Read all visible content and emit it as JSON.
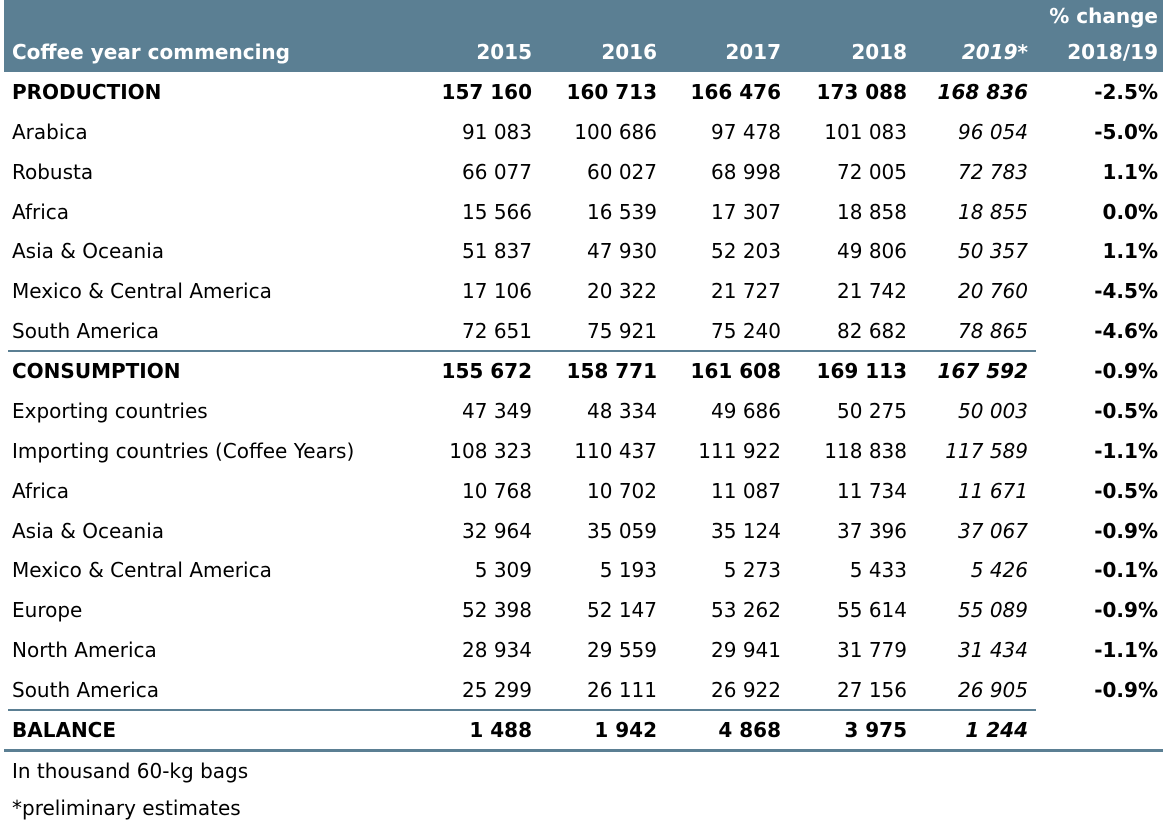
{
  "header": {
    "label": "Coffee year commencing",
    "columns": [
      "2015",
      "2016",
      "2017",
      "2018",
      "2019*"
    ],
    "change": [
      "% change",
      "2018/19"
    ]
  },
  "rows": [
    {
      "label": "PRODUCTION",
      "values": [
        "157 160",
        "160 713",
        "166 476",
        "173 088",
        "168 836"
      ],
      "change": "-2.5%",
      "bold": true
    },
    {
      "label": "Arabica",
      "values": [
        "91 083",
        "100 686",
        "97 478",
        "101 083",
        "96 054"
      ],
      "change": "-5.0%"
    },
    {
      "label": "Robusta",
      "values": [
        "66 077",
        "60 027",
        "68 998",
        "72 005",
        "72 783"
      ],
      "change": "1.1%"
    },
    {
      "label": "Africa",
      "values": [
        "15 566",
        "16 539",
        "17 307",
        "18 858",
        "18 855"
      ],
      "change": "0.0%"
    },
    {
      "label": "Asia & Oceania",
      "values": [
        "51 837",
        "47 930",
        "52 203",
        "49 806",
        "50 357"
      ],
      "change": "1.1%"
    },
    {
      "label": "Mexico & Central America",
      "values": [
        "17 106",
        "20 322",
        "21 727",
        "21 742",
        "20 760"
      ],
      "change": "-4.5%"
    },
    {
      "label": "South America",
      "values": [
        "72 651",
        "75 921",
        "75 240",
        "82 682",
        "78 865"
      ],
      "change": "-4.6%"
    },
    {
      "label": "CONSUMPTION",
      "values": [
        "155 672",
        "158 771",
        "161 608",
        "169 113",
        "167 592"
      ],
      "change": "-0.9%",
      "bold": true
    },
    {
      "label": "Exporting countries",
      "values": [
        "47 349",
        "48 334",
        "49 686",
        "50 275",
        "50 003"
      ],
      "change": "-0.5%"
    },
    {
      "label": "Importing countries (Coffee Years)",
      "values": [
        "108 323",
        "110 437",
        "111 922",
        "118 838",
        "117 589"
      ],
      "change": "-1.1%"
    },
    {
      "label": "Africa",
      "values": [
        "10 768",
        "10 702",
        "11 087",
        "11 734",
        "11 671"
      ],
      "change": "-0.5%"
    },
    {
      "label": "Asia & Oceania",
      "values": [
        "32 964",
        "35 059",
        "35 124",
        "37 396",
        "37 067"
      ],
      "change": "-0.9%"
    },
    {
      "label": "Mexico & Central America",
      "values": [
        "5 309",
        "5 193",
        "5 273",
        "5 433",
        "5 426"
      ],
      "change": "-0.1%"
    },
    {
      "label": "Europe",
      "values": [
        "52 398",
        "52 147",
        "53 262",
        "55 614",
        "55 089"
      ],
      "change": "-0.9%"
    },
    {
      "label": "North America",
      "values": [
        "28 934",
        "29 559",
        "29 941",
        "31 779",
        "31 434"
      ],
      "change": "-1.1%"
    },
    {
      "label": "South America",
      "values": [
        "25 299",
        "26 111",
        "26 922",
        "27 156",
        "26 905"
      ],
      "change": "-0.9%"
    },
    {
      "label": "BALANCE",
      "values": [
        "1 488",
        "1 942",
        "4 868",
        "3 975",
        "1 244"
      ],
      "bold": true
    }
  ],
  "notes": [
    "In thousand 60-kg bags",
    "*preliminary estimates"
  ]
}
